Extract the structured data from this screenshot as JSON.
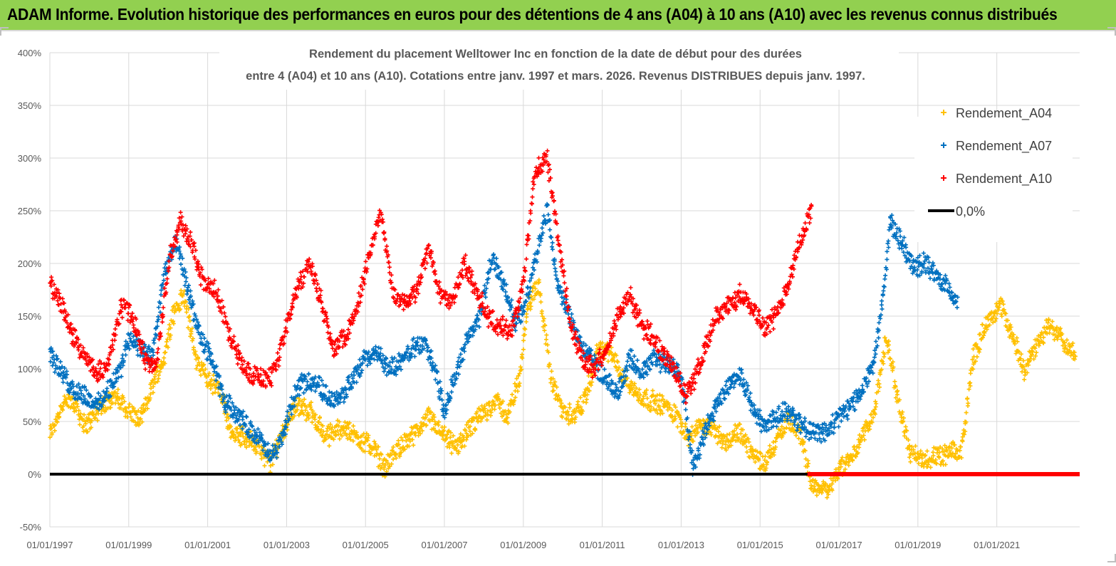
{
  "header": {
    "banner_text": "ADAM Informe. Evolution historique des performances en euros pour des détentions de 4 ans (A04) à 10 ans (A10) avec les revenus connus distribués",
    "banner_color": "#92d050"
  },
  "chart_data": {
    "type": "scatter",
    "title_line1": "Rendement du placement Welltower Inc en fonction de la date de début pour des durées",
    "title_line2": "entre 4 (A04) et 10 ans (A10).  Cotations entre janv. 1997 et mars. 2026. Revenus DISTRIBUES depuis janv. 1997.",
    "x_tick_labels": [
      "01/01/1997",
      "01/01/1999",
      "01/01/2001",
      "01/01/2003",
      "01/01/2005",
      "01/01/2007",
      "01/01/2009",
      "01/01/2011",
      "01/01/2013",
      "01/01/2015",
      "01/01/2017",
      "01/01/2019",
      "01/01/2021"
    ],
    "x_range": [
      1997.0,
      2023.1
    ],
    "y_tick_labels": [
      "400%",
      "350%",
      "300%",
      "250%",
      "200%",
      "150%",
      "100%",
      "50%",
      "0%",
      "-50%"
    ],
    "y_ticks": [
      400,
      350,
      300,
      250,
      200,
      150,
      100,
      50,
      0,
      -50
    ],
    "ylim": [
      -50,
      400
    ],
    "grid": true,
    "legend_position": "top-right",
    "series": [
      {
        "name": "Rendement_A04",
        "color": "#ffc000",
        "x_range": [
          1997.0,
          2023.0
        ],
        "anchors": [
          [
            1997.0,
            37
          ],
          [
            1997.3,
            65
          ],
          [
            1997.6,
            70
          ],
          [
            1997.9,
            45
          ],
          [
            1998.2,
            60
          ],
          [
            1998.6,
            75
          ],
          [
            1999.0,
            60
          ],
          [
            1999.3,
            50
          ],
          [
            1999.6,
            85
          ],
          [
            1999.9,
            110
          ],
          [
            2000.1,
            150
          ],
          [
            2000.4,
            170
          ],
          [
            2000.7,
            110
          ],
          [
            2001.0,
            90
          ],
          [
            2001.3,
            80
          ],
          [
            2001.6,
            40
          ],
          [
            2002.0,
            35
          ],
          [
            2002.4,
            20
          ],
          [
            2002.6,
            10
          ],
          [
            2002.9,
            40
          ],
          [
            2003.2,
            65
          ],
          [
            2003.6,
            60
          ],
          [
            2004.0,
            35
          ],
          [
            2004.4,
            45
          ],
          [
            2004.8,
            35
          ],
          [
            2005.2,
            25
          ],
          [
            2005.5,
            5
          ],
          [
            2005.8,
            25
          ],
          [
            2006.2,
            35
          ],
          [
            2006.6,
            55
          ],
          [
            2007.0,
            35
          ],
          [
            2007.3,
            25
          ],
          [
            2007.6,
            40
          ],
          [
            2007.9,
            55
          ],
          [
            2008.3,
            70
          ],
          [
            2008.6,
            55
          ],
          [
            2008.9,
            90
          ],
          [
            2009.1,
            160
          ],
          [
            2009.4,
            180
          ],
          [
            2009.7,
            90
          ],
          [
            2010.0,
            60
          ],
          [
            2010.3,
            55
          ],
          [
            2010.6,
            75
          ],
          [
            2010.9,
            120
          ],
          [
            2011.2,
            115
          ],
          [
            2011.5,
            95
          ],
          [
            2011.9,
            75
          ],
          [
            2012.2,
            70
          ],
          [
            2012.6,
            65
          ],
          [
            2012.9,
            55
          ],
          [
            2013.2,
            35
          ],
          [
            2013.5,
            45
          ],
          [
            2013.8,
            45
          ],
          [
            2014.1,
            30
          ],
          [
            2014.5,
            40
          ],
          [
            2014.8,
            20
          ],
          [
            2015.1,
            10
          ],
          [
            2015.4,
            30
          ],
          [
            2015.7,
            50
          ],
          [
            2016.0,
            40
          ],
          [
            2016.3,
            -10
          ],
          [
            2016.7,
            -15
          ],
          [
            2017.0,
            5
          ],
          [
            2017.3,
            15
          ],
          [
            2017.6,
            35
          ],
          [
            2017.9,
            60
          ],
          [
            2018.2,
            130
          ],
          [
            2018.5,
            70
          ],
          [
            2018.8,
            20
          ],
          [
            2019.1,
            15
          ],
          [
            2019.5,
            15
          ],
          [
            2019.8,
            20
          ],
          [
            2020.1,
            20
          ],
          [
            2020.4,
            110
          ],
          [
            2020.8,
            150
          ],
          [
            2021.1,
            160
          ],
          [
            2021.4,
            130
          ],
          [
            2021.7,
            100
          ],
          [
            2022.0,
            120
          ],
          [
            2022.3,
            140
          ],
          [
            2022.6,
            135
          ],
          [
            2022.8,
            120
          ],
          [
            2023.0,
            115
          ]
        ]
      },
      {
        "name": "Rendement_A07",
        "color": "#0070c0",
        "x_range": [
          1997.0,
          2020.0
        ],
        "anchors": [
          [
            1997.0,
            115
          ],
          [
            1997.3,
            95
          ],
          [
            1997.6,
            80
          ],
          [
            1997.9,
            75
          ],
          [
            1998.2,
            65
          ],
          [
            1998.5,
            80
          ],
          [
            1998.8,
            100
          ],
          [
            1999.0,
            130
          ],
          [
            1999.3,
            120
          ],
          [
            1999.6,
            110
          ],
          [
            1999.9,
            190
          ],
          [
            2000.2,
            220
          ],
          [
            2000.5,
            175
          ],
          [
            2000.8,
            130
          ],
          [
            2001.1,
            110
          ],
          [
            2001.4,
            70
          ],
          [
            2001.7,
            60
          ],
          [
            2002.0,
            45
          ],
          [
            2002.3,
            35
          ],
          [
            2002.6,
            15
          ],
          [
            2002.9,
            35
          ],
          [
            2003.2,
            75
          ],
          [
            2003.5,
            90
          ],
          [
            2003.8,
            85
          ],
          [
            2004.1,
            70
          ],
          [
            2004.4,
            75
          ],
          [
            2004.7,
            90
          ],
          [
            2005.0,
            110
          ],
          [
            2005.3,
            115
          ],
          [
            2005.6,
            100
          ],
          [
            2005.9,
            105
          ],
          [
            2006.2,
            120
          ],
          [
            2006.5,
            125
          ],
          [
            2006.8,
            95
          ],
          [
            2007.0,
            60
          ],
          [
            2007.3,
            95
          ],
          [
            2007.6,
            130
          ],
          [
            2007.9,
            150
          ],
          [
            2008.2,
            205
          ],
          [
            2008.5,
            180
          ],
          [
            2008.8,
            145
          ],
          [
            2009.0,
            155
          ],
          [
            2009.3,
            200
          ],
          [
            2009.6,
            250
          ],
          [
            2009.9,
            175
          ],
          [
            2010.2,
            150
          ],
          [
            2010.5,
            120
          ],
          [
            2010.8,
            105
          ],
          [
            2011.1,
            90
          ],
          [
            2011.4,
            75
          ],
          [
            2011.7,
            110
          ],
          [
            2012.0,
            95
          ],
          [
            2012.3,
            110
          ],
          [
            2012.6,
            105
          ],
          [
            2012.9,
            100
          ],
          [
            2013.1,
            70
          ],
          [
            2013.3,
            5
          ],
          [
            2013.6,
            40
          ],
          [
            2013.9,
            65
          ],
          [
            2014.2,
            85
          ],
          [
            2014.5,
            95
          ],
          [
            2014.8,
            65
          ],
          [
            2015.1,
            45
          ],
          [
            2015.4,
            55
          ],
          [
            2015.7,
            60
          ],
          [
            2016.0,
            50
          ],
          [
            2016.3,
            40
          ],
          [
            2016.7,
            40
          ],
          [
            2017.0,
            55
          ],
          [
            2017.3,
            65
          ],
          [
            2017.6,
            80
          ],
          [
            2017.9,
            110
          ],
          [
            2018.1,
            160
          ],
          [
            2018.3,
            240
          ],
          [
            2018.6,
            220
          ],
          [
            2018.9,
            195
          ],
          [
            2019.2,
            200
          ],
          [
            2019.5,
            185
          ],
          [
            2019.8,
            175
          ],
          [
            2020.0,
            165
          ]
        ]
      },
      {
        "name": "Rendement_A10",
        "color": "#ff0000",
        "x_range": [
          1997.0,
          2016.3
        ],
        "anchors": [
          [
            1997.0,
            180
          ],
          [
            1997.3,
            160
          ],
          [
            1997.6,
            130
          ],
          [
            1997.9,
            110
          ],
          [
            1998.2,
            95
          ],
          [
            1998.5,
            105
          ],
          [
            1998.8,
            160
          ],
          [
            1999.1,
            150
          ],
          [
            1999.4,
            110
          ],
          [
            1999.7,
            100
          ],
          [
            2000.0,
            200
          ],
          [
            2000.3,
            240
          ],
          [
            2000.6,
            220
          ],
          [
            2000.9,
            180
          ],
          [
            2001.2,
            175
          ],
          [
            2001.5,
            140
          ],
          [
            2001.8,
            110
          ],
          [
            2002.1,
            95
          ],
          [
            2002.4,
            90
          ],
          [
            2002.7,
            95
          ],
          [
            2003.0,
            140
          ],
          [
            2003.3,
            180
          ],
          [
            2003.6,
            200
          ],
          [
            2003.9,
            160
          ],
          [
            2004.2,
            120
          ],
          [
            2004.5,
            130
          ],
          [
            2004.8,
            160
          ],
          [
            2005.1,
            210
          ],
          [
            2005.4,
            250
          ],
          [
            2005.7,
            170
          ],
          [
            2006.0,
            160
          ],
          [
            2006.3,
            175
          ],
          [
            2006.6,
            215
          ],
          [
            2006.9,
            170
          ],
          [
            2007.2,
            165
          ],
          [
            2007.5,
            200
          ],
          [
            2007.8,
            175
          ],
          [
            2008.1,
            150
          ],
          [
            2008.4,
            140
          ],
          [
            2008.7,
            135
          ],
          [
            2009.0,
            180
          ],
          [
            2009.3,
            290
          ],
          [
            2009.6,
            300
          ],
          [
            2009.9,
            220
          ],
          [
            2010.2,
            140
          ],
          [
            2010.5,
            110
          ],
          [
            2010.8,
            100
          ],
          [
            2011.1,
            120
          ],
          [
            2011.4,
            150
          ],
          [
            2011.7,
            170
          ],
          [
            2012.0,
            140
          ],
          [
            2012.3,
            130
          ],
          [
            2012.6,
            110
          ],
          [
            2012.9,
            95
          ],
          [
            2013.1,
            75
          ],
          [
            2013.3,
            85
          ],
          [
            2013.6,
            120
          ],
          [
            2013.9,
            150
          ],
          [
            2014.2,
            160
          ],
          [
            2014.5,
            170
          ],
          [
            2014.8,
            160
          ],
          [
            2015.1,
            140
          ],
          [
            2015.4,
            150
          ],
          [
            2015.7,
            180
          ],
          [
            2016.0,
            220
          ],
          [
            2016.3,
            250
          ]
        ]
      }
    ],
    "zero_line": {
      "name": "0,0%",
      "color": "#000000"
    },
    "red_zero_segment": {
      "x_from": 2016.2,
      "x_to": 2023.1,
      "color": "#ff0000"
    },
    "legend": [
      "Rendement_A04",
      "Rendement_A07",
      "Rendement_A10",
      "0,0%"
    ]
  }
}
